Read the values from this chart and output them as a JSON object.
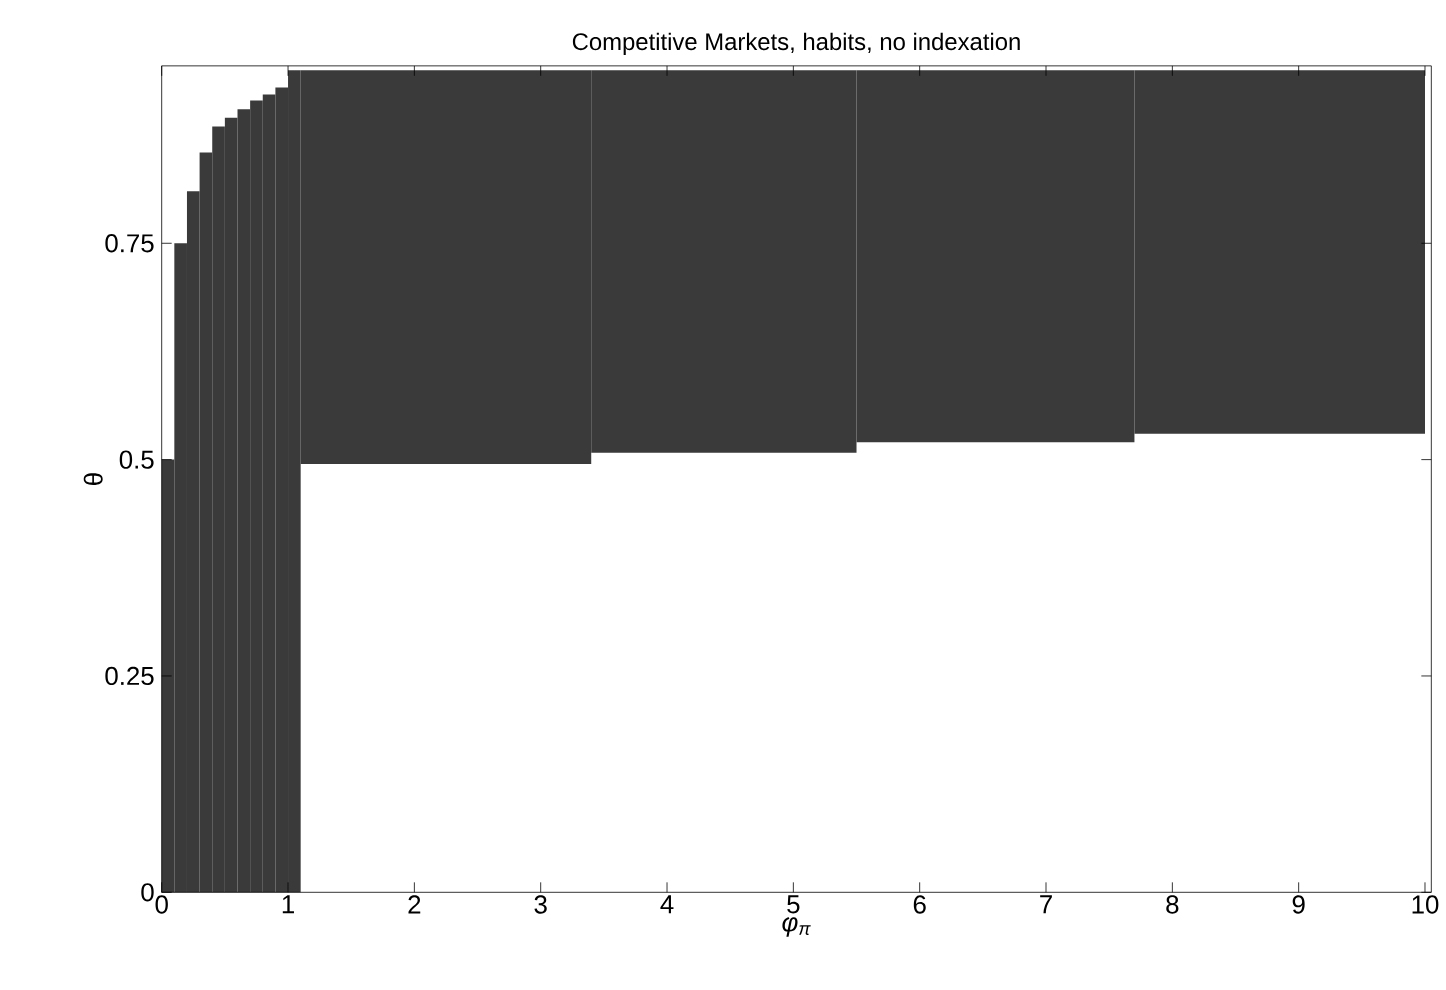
{
  "chart_data": {
    "type": "bar",
    "title": "Competitive Markets, habits, no indexation",
    "xlabel": "φ$_{π}$",
    "ylabel": "θ",
    "x": [
      0.05,
      0.15,
      0.25,
      0.35,
      0.45,
      0.55,
      0.65,
      0.75,
      0.85,
      0.95,
      1.05,
      2.25,
      4.45,
      6.6,
      8.85
    ],
    "series": [
      {
        "color": "#3a3a3a",
        "base": [
          0,
          0,
          0,
          0,
          0,
          0,
          0,
          0,
          0,
          0,
          0,
          0.495,
          0.508,
          0.52,
          0.53
        ],
        "values": [
          0.5,
          0.75,
          0.81,
          0.855,
          0.885,
          0.895,
          0.905,
          0.915,
          0.922,
          0.93,
          0.95,
          0.455,
          0.442,
          0.43,
          0.42
        ]
      }
    ],
    "xlim": [
      0,
      10.05
    ],
    "ylim": [
      0,
      0.955
    ],
    "xticks": [
      0,
      1,
      2,
      3,
      4,
      5,
      6,
      7,
      8,
      9,
      10
    ],
    "yticks": [
      0,
      0.25,
      0.5,
      0.75
    ]
  }
}
